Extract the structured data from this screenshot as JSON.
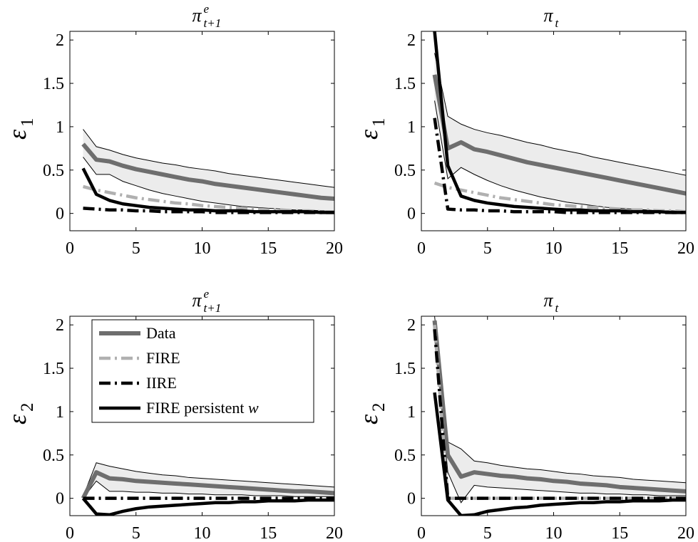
{
  "chart_data": {
    "type": "line",
    "layout": "2x2 grid",
    "legend": {
      "placement": "top-left of bottom-left panel",
      "entries": [
        {
          "label": "Data",
          "series": "Data"
        },
        {
          "label": "FIRE",
          "series": "FIRE"
        },
        {
          "label": "IIRE",
          "series": "IIRE"
        },
        {
          "label_main": "FIRE persistent ",
          "label_var": "w",
          "series": "FIRE persistent w"
        }
      ]
    },
    "styles": {
      "Data": {
        "color": "#6e6e6e",
        "dash": "solid"
      },
      "FIRE": {
        "color": "#b0b0b0",
        "dash": "dashdot"
      },
      "IIRE": {
        "color": "#000000",
        "dash": "dashdot"
      },
      "FIRE persistent w": {
        "color": "#000000",
        "dash": "solid"
      },
      "band_fill": "#ececec",
      "band_edge": "#000000"
    },
    "panels": [
      {
        "title_main": "π",
        "title_sup": "e",
        "title_sub": "t+1",
        "ylabel_main": "ε",
        "ylabel_sub": "1",
        "xlim": [
          0,
          20
        ],
        "ylim": [
          -0.2,
          2.1
        ],
        "xticks": [
          0,
          5,
          10,
          15,
          20
        ],
        "yticks": [
          0,
          0.5,
          1,
          1.5,
          2
        ],
        "x": [
          1,
          2,
          3,
          4,
          5,
          6,
          7,
          8,
          9,
          10,
          11,
          12,
          13,
          14,
          15,
          16,
          17,
          18,
          19,
          20
        ],
        "series": [
          {
            "name": "Data",
            "values": [
              0.8,
              0.62,
              0.6,
              0.55,
              0.51,
              0.48,
              0.45,
              0.42,
              0.39,
              0.37,
              0.34,
              0.32,
              0.3,
              0.28,
              0.26,
              0.24,
              0.22,
              0.2,
              0.18,
              0.17
            ]
          },
          {
            "name": "FIRE",
            "values": [
              0.31,
              0.27,
              0.24,
              0.21,
              0.18,
              0.16,
              0.14,
              0.12,
              0.11,
              0.09,
              0.08,
              0.07,
              0.06,
              0.05,
              0.04,
              0.04,
              0.03,
              0.03,
              0.02,
              0.02
            ]
          },
          {
            "name": "IIRE",
            "values": [
              0.06,
              0.05,
              0.04,
              0.04,
              0.03,
              0.03,
              0.02,
              0.02,
              0.02,
              0.02,
              0.01,
              0.01,
              0.01,
              0.01,
              0.01,
              0.01,
              0.01,
              0.01,
              0.01,
              0.01
            ]
          },
          {
            "name": "FIRE persistent w",
            "values": [
              0.52,
              0.22,
              0.15,
              0.11,
              0.09,
              0.07,
              0.06,
              0.05,
              0.04,
              0.04,
              0.03,
              0.03,
              0.03,
              0.02,
              0.02,
              0.02,
              0.02,
              0.02,
              0.01,
              0.01
            ]
          }
        ],
        "band": {
          "lower": [
            0.65,
            0.45,
            0.45,
            0.37,
            0.32,
            0.27,
            0.23,
            0.2,
            0.17,
            0.14,
            0.12,
            0.1,
            0.08,
            0.07,
            0.06,
            0.05,
            0.04,
            0.04,
            0.03,
            0.03
          ],
          "upper": [
            0.97,
            0.77,
            0.73,
            0.68,
            0.64,
            0.61,
            0.58,
            0.56,
            0.53,
            0.51,
            0.49,
            0.46,
            0.44,
            0.42,
            0.4,
            0.38,
            0.36,
            0.34,
            0.32,
            0.3
          ]
        }
      },
      {
        "title_main": "π",
        "title_sup": "",
        "title_sub": "t",
        "ylabel_main": "ε",
        "ylabel_sub": "1",
        "xlim": [
          0,
          20
        ],
        "ylim": [
          -0.2,
          2.1
        ],
        "xticks": [
          0,
          5,
          10,
          15,
          20
        ],
        "yticks": [
          0,
          0.5,
          1,
          1.5,
          2
        ],
        "x": [
          1,
          2,
          3,
          4,
          5,
          6,
          7,
          8,
          9,
          10,
          11,
          12,
          13,
          14,
          15,
          16,
          17,
          18,
          19,
          20
        ],
        "series": [
          {
            "name": "Data",
            "values": [
              1.6,
              0.75,
              0.82,
              0.74,
              0.71,
              0.67,
              0.63,
              0.59,
              0.56,
              0.53,
              0.5,
              0.47,
              0.44,
              0.41,
              0.38,
              0.35,
              0.32,
              0.29,
              0.26,
              0.23
            ]
          },
          {
            "name": "FIRE",
            "values": [
              0.35,
              0.3,
              0.27,
              0.24,
              0.21,
              0.18,
              0.16,
              0.14,
              0.12,
              0.1,
              0.09,
              0.08,
              0.07,
              0.06,
              0.05,
              0.04,
              0.04,
              0.03,
              0.03,
              0.02
            ]
          },
          {
            "name": "IIRE",
            "values": [
              1.1,
              0.05,
              0.04,
              0.04,
              0.03,
              0.03,
              0.02,
              0.02,
              0.02,
              0.02,
              0.01,
              0.01,
              0.01,
              0.01,
              0.01,
              0.01,
              0.01,
              0.01,
              0.01,
              0.01
            ]
          },
          {
            "name": "FIRE persistent w",
            "values": [
              2.1,
              0.55,
              0.2,
              0.15,
              0.12,
              0.1,
              0.08,
              0.07,
              0.06,
              0.05,
              0.04,
              0.04,
              0.03,
              0.03,
              0.03,
              0.02,
              0.02,
              0.02,
              0.01,
              0.01
            ]
          }
        ],
        "band": {
          "lower": [
            1.3,
            0.4,
            0.53,
            0.45,
            0.38,
            0.32,
            0.27,
            0.23,
            0.19,
            0.16,
            0.13,
            0.11,
            0.09,
            0.07,
            0.06,
            0.05,
            0.04,
            0.03,
            0.03,
            0.02
          ],
          "upper": [
            1.85,
            1.12,
            1.03,
            0.97,
            0.93,
            0.9,
            0.86,
            0.82,
            0.79,
            0.75,
            0.72,
            0.69,
            0.65,
            0.62,
            0.59,
            0.56,
            0.53,
            0.5,
            0.47,
            0.44
          ]
        }
      },
      {
        "title_main": "π",
        "title_sup": "e",
        "title_sub": "t+1",
        "ylabel_main": "ε",
        "ylabel_sub": "2",
        "xlim": [
          0,
          20
        ],
        "ylim": [
          -0.2,
          2.1
        ],
        "xticks": [
          0,
          5,
          10,
          15,
          20
        ],
        "yticks": [
          0,
          0.5,
          1,
          1.5,
          2
        ],
        "x": [
          1,
          2,
          3,
          4,
          5,
          6,
          7,
          8,
          9,
          10,
          11,
          12,
          13,
          14,
          15,
          16,
          17,
          18,
          19,
          20
        ],
        "series": [
          {
            "name": "Data",
            "values": [
              0.0,
              0.3,
              0.23,
              0.22,
              0.2,
              0.19,
              0.18,
              0.17,
              0.16,
              0.15,
              0.14,
              0.13,
              0.12,
              0.11,
              0.1,
              0.09,
              0.08,
              0.08,
              0.07,
              0.06
            ]
          },
          {
            "name": "FIRE",
            "values": [
              0.0,
              0.0,
              0.0,
              0.0,
              0.0,
              0.0,
              0.0,
              0.0,
              0.0,
              0.0,
              0.0,
              0.0,
              0.0,
              0.0,
              0.0,
              0.0,
              0.0,
              0.0,
              0.0,
              0.0
            ]
          },
          {
            "name": "IIRE",
            "values": [
              0.0,
              0.0,
              0.0,
              0.0,
              0.0,
              0.0,
              0.0,
              0.0,
              0.0,
              0.0,
              0.0,
              0.0,
              0.0,
              0.0,
              0.0,
              0.0,
              0.0,
              0.0,
              0.0,
              0.0
            ]
          },
          {
            "name": "FIRE persistent w",
            "values": [
              0.0,
              -0.18,
              -0.19,
              -0.15,
              -0.12,
              -0.1,
              -0.09,
              -0.08,
              -0.07,
              -0.06,
              -0.05,
              -0.05,
              -0.04,
              -0.04,
              -0.03,
              -0.03,
              -0.03,
              -0.02,
              -0.02,
              -0.02
            ]
          }
        ],
        "band": {
          "lower": [
            0.0,
            0.2,
            0.08,
            0.08,
            0.07,
            0.07,
            0.06,
            0.06,
            0.05,
            0.05,
            0.04,
            0.04,
            0.04,
            0.03,
            0.03,
            0.03,
            0.02,
            0.02,
            0.02,
            0.02
          ],
          "upper": [
            0.02,
            0.41,
            0.37,
            0.34,
            0.31,
            0.29,
            0.27,
            0.26,
            0.24,
            0.23,
            0.22,
            0.21,
            0.2,
            0.19,
            0.18,
            0.17,
            0.16,
            0.15,
            0.14,
            0.13
          ]
        }
      },
      {
        "title_main": "π",
        "title_sup": "",
        "title_sub": "t",
        "ylabel_main": "ε",
        "ylabel_sub": "2",
        "xlim": [
          0,
          20
        ],
        "ylim": [
          -0.2,
          2.1
        ],
        "xticks": [
          0,
          5,
          10,
          15,
          20
        ],
        "yticks": [
          0,
          0.5,
          1,
          1.5,
          2
        ],
        "x": [
          1,
          2,
          3,
          4,
          5,
          6,
          7,
          8,
          9,
          10,
          11,
          12,
          13,
          14,
          15,
          16,
          17,
          18,
          19,
          20
        ],
        "series": [
          {
            "name": "Data",
            "values": [
              2.05,
              0.5,
              0.25,
              0.3,
              0.28,
              0.26,
              0.25,
              0.23,
              0.22,
              0.2,
              0.19,
              0.17,
              0.16,
              0.15,
              0.13,
              0.12,
              0.11,
              0.1,
              0.09,
              0.08
            ]
          },
          {
            "name": "FIRE",
            "values": [
              2.0,
              0.0,
              0.0,
              0.0,
              0.0,
              0.0,
              0.0,
              0.0,
              0.0,
              0.0,
              0.0,
              0.0,
              0.0,
              0.0,
              0.0,
              0.0,
              0.0,
              0.0,
              0.0,
              0.0
            ]
          },
          {
            "name": "IIRE",
            "values": [
              1.95,
              0.0,
              0.0,
              0.0,
              0.0,
              0.0,
              0.0,
              0.0,
              0.0,
              0.0,
              0.0,
              0.0,
              0.0,
              0.0,
              0.0,
              0.0,
              0.0,
              0.0,
              0.0,
              0.0
            ]
          },
          {
            "name": "FIRE persistent w",
            "values": [
              1.22,
              -0.02,
              -0.2,
              -0.19,
              -0.15,
              -0.13,
              -0.11,
              -0.1,
              -0.08,
              -0.07,
              -0.06,
              -0.05,
              -0.05,
              -0.04,
              -0.04,
              -0.03,
              -0.03,
              -0.03,
              -0.02,
              -0.02
            ]
          }
        ],
        "band": {
          "lower": [
            1.9,
            0.3,
            -0.05,
            0.15,
            0.13,
            0.12,
            0.11,
            0.1,
            0.09,
            0.08,
            0.07,
            0.06,
            0.06,
            0.05,
            0.05,
            0.04,
            0.04,
            0.03,
            0.03,
            0.03
          ],
          "upper": [
            2.1,
            0.65,
            0.57,
            0.43,
            0.41,
            0.38,
            0.36,
            0.34,
            0.33,
            0.31,
            0.29,
            0.28,
            0.26,
            0.25,
            0.24,
            0.22,
            0.21,
            0.2,
            0.19,
            0.18
          ]
        }
      }
    ]
  }
}
